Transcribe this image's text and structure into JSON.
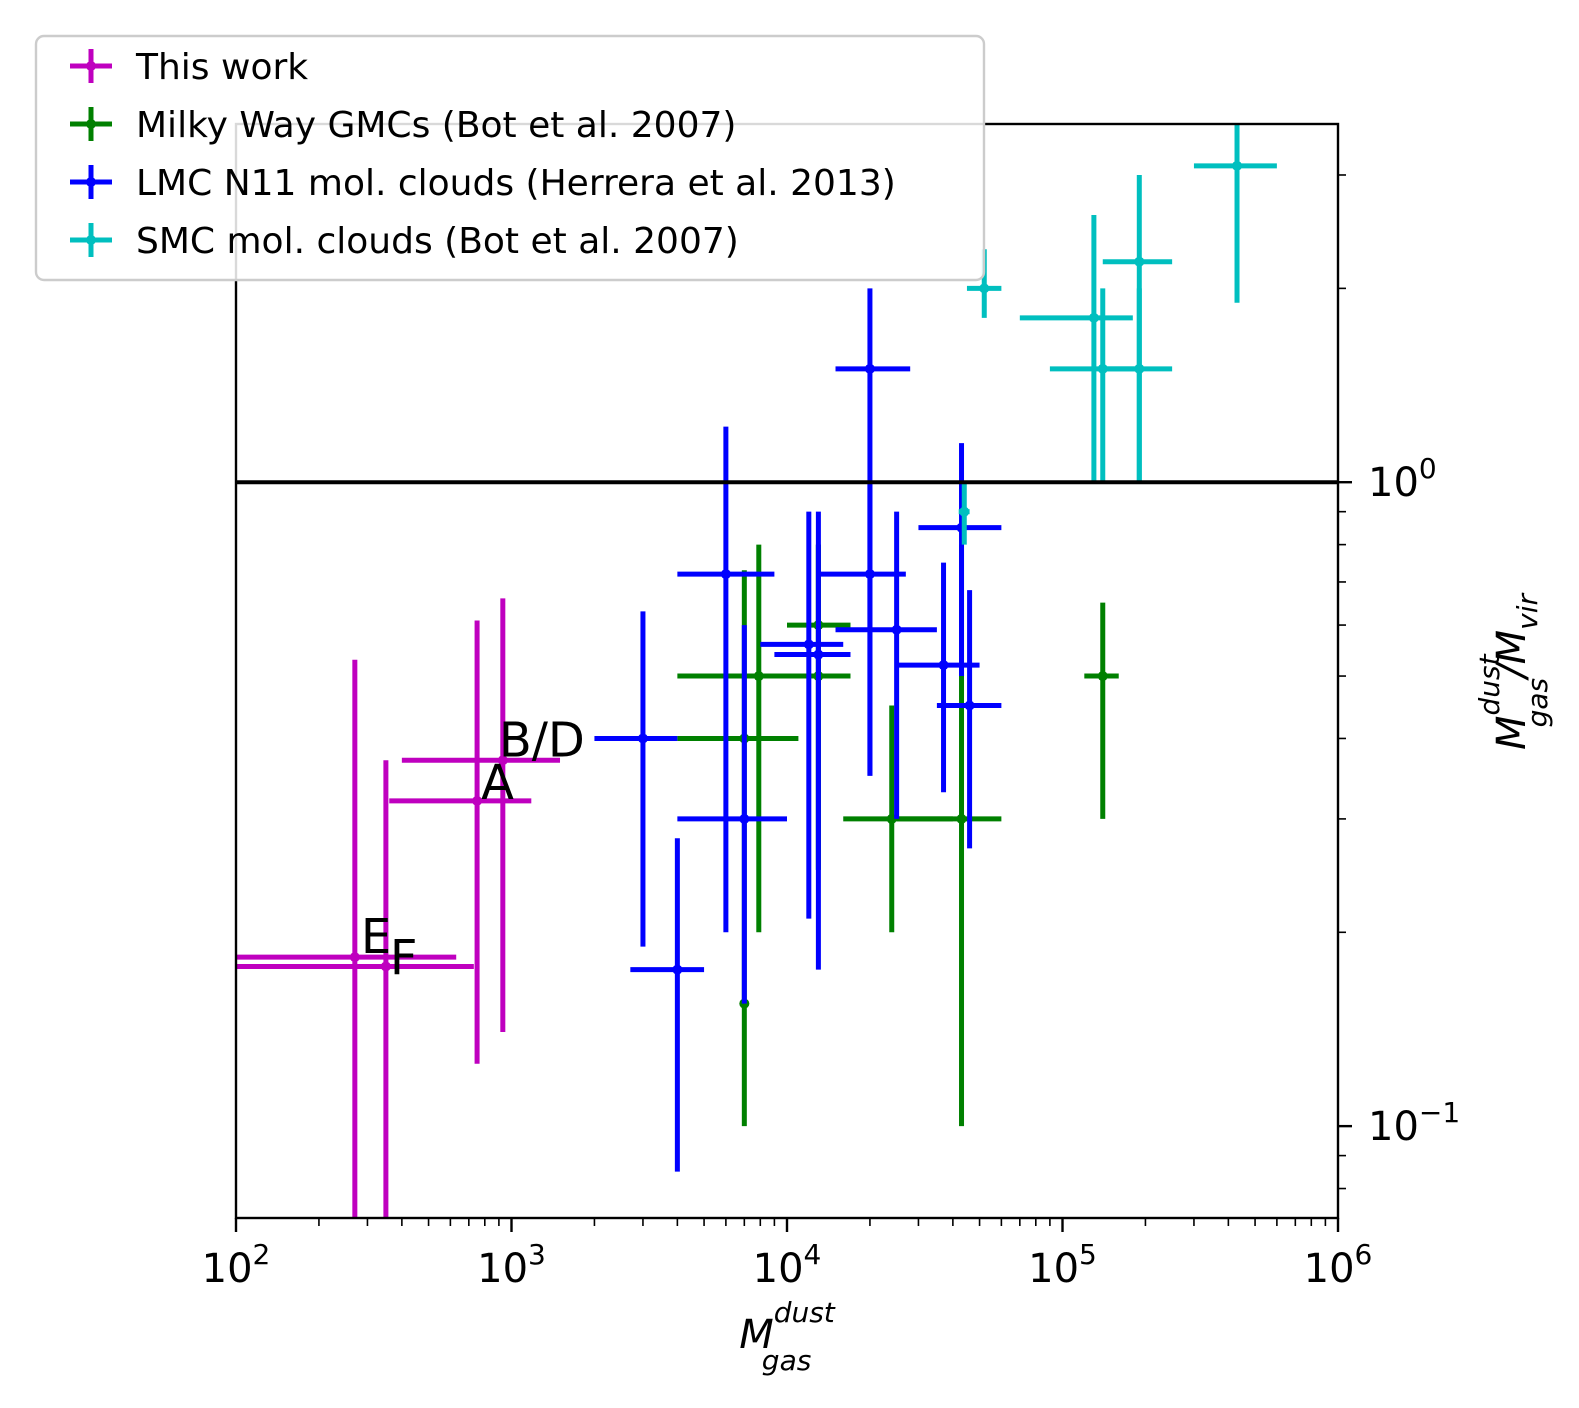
{
  "chart_data": {
    "type": "scatter",
    "x_scale": "log",
    "y_scale": "log",
    "xlim": [
      100,
      1000000
    ],
    "ylim": [
      0.072,
      3.6
    ],
    "xlabel": {
      "base": "M",
      "sup": "dust",
      "sub": "gas"
    },
    "ylabel": {
      "base": "M",
      "sup": "dust",
      "sub": "gas",
      "suffix": "/M",
      "suffix_sub": "vir"
    },
    "x_ticks": [
      {
        "value": 100,
        "base": "10",
        "exp": "2"
      },
      {
        "value": 1000,
        "base": "10",
        "exp": "3"
      },
      {
        "value": 10000,
        "base": "10",
        "exp": "4"
      },
      {
        "value": 100000,
        "base": "10",
        "exp": "5"
      },
      {
        "value": 1000000,
        "base": "10",
        "exp": "6"
      }
    ],
    "y_ticks": [
      {
        "value": 0.1,
        "base": "10",
        "exp": "−1"
      },
      {
        "value": 1,
        "base": "10",
        "exp": "0"
      }
    ],
    "reference_line": {
      "y": 1.0,
      "color": "#000000"
    },
    "legend_position": "top-left",
    "series": [
      {
        "name": "This work",
        "color": "#bf00bf",
        "points": [
          {
            "x": 750,
            "y": 0.32,
            "xerr": [
              360,
              1180
            ],
            "yerr": [
              0.125,
              0.61
            ],
            "label": "A"
          },
          {
            "x": 930,
            "y": 0.37,
            "xerr": [
              400,
              1500
            ],
            "yerr": [
              0.14,
              0.66
            ],
            "label": "B/D"
          },
          {
            "x": 270,
            "y": 0.183,
            "xerr": [
              100,
              630
            ],
            "yerr": [
              0.072,
              0.53
            ],
            "label": "E"
          },
          {
            "x": 350,
            "y": 0.177,
            "xerr": [
              100,
              730
            ],
            "yerr": [
              0.072,
              0.37
            ],
            "label": "F"
          }
        ]
      },
      {
        "name": "Milky Way GMCs (Bot et al. 2007)",
        "color": "#008000",
        "points": [
          {
            "x": 7000,
            "y": 0.4,
            "xerr": [
              4000,
              11000
            ],
            "yerr": [
              0.155,
              0.73
            ]
          },
          {
            "x": 7900,
            "y": 0.5,
            "xerr": [
              4000,
              16000
            ],
            "yerr": [
              0.2,
              0.8
            ]
          },
          {
            "x": 13000,
            "y": 0.6,
            "xerr": [
              10000,
              17000
            ],
            "yerr": [
              0.25,
              0.8
            ]
          },
          {
            "x": 13000,
            "y": 0.5,
            "xerr": [
              10000,
              17000
            ],
            "yerr": [
              0.25,
              0.8
            ]
          },
          {
            "x": 24000,
            "y": 0.3,
            "xerr": [
              16000,
              40000
            ],
            "yerr": [
              0.2,
              0.45
            ]
          },
          {
            "x": 43000,
            "y": 0.3,
            "xerr": [
              25000,
              60000
            ],
            "yerr": [
              0.1,
              0.8
            ]
          },
          {
            "x": 140000,
            "y": 0.5,
            "xerr": [
              120000,
              160000
            ],
            "yerr": [
              0.3,
              0.65
            ]
          },
          {
            "x": 7000,
            "y": 0.155,
            "xerr": [
              7000,
              7000
            ],
            "yerr": [
              0.1,
              0.155
            ]
          }
        ]
      },
      {
        "name": "LMC N11 mol. clouds (Herrera et al. 2013)",
        "color": "#0000ff",
        "points": [
          {
            "x": 3000,
            "y": 0.4,
            "xerr": [
              2000,
              4000
            ],
            "yerr": [
              0.19,
              0.63
            ]
          },
          {
            "x": 4000,
            "y": 0.175,
            "xerr": [
              2700,
              5000
            ],
            "yerr": [
              0.085,
              0.28
            ]
          },
          {
            "x": 6000,
            "y": 0.72,
            "xerr": [
              4000,
              9000
            ],
            "yerr": [
              0.2,
              1.22
            ]
          },
          {
            "x": 7000,
            "y": 0.3,
            "xerr": [
              4000,
              10000
            ],
            "yerr": [
              0.155,
              0.6
            ]
          },
          {
            "x": 12000,
            "y": 0.56,
            "xerr": [
              8000,
              16000
            ],
            "yerr": [
              0.21,
              0.9
            ]
          },
          {
            "x": 13000,
            "y": 0.54,
            "xerr": [
              9000,
              17000
            ],
            "yerr": [
              0.175,
              0.9
            ]
          },
          {
            "x": 20000,
            "y": 1.5,
            "xerr": [
              15000,
              28000
            ],
            "yerr": [
              0.35,
              2.0
            ]
          },
          {
            "x": 20000,
            "y": 0.72,
            "xerr": [
              13000,
              27000
            ],
            "yerr": [
              0.35,
              1.0
            ]
          },
          {
            "x": 25000,
            "y": 0.59,
            "xerr": [
              15000,
              35000
            ],
            "yerr": [
              0.3,
              0.9
            ]
          },
          {
            "x": 37000,
            "y": 0.52,
            "xerr": [
              25000,
              50000
            ],
            "yerr": [
              0.33,
              0.75
            ]
          },
          {
            "x": 43000,
            "y": 0.85,
            "xerr": [
              30000,
              60000
            ],
            "yerr": [
              0.5,
              1.15
            ]
          },
          {
            "x": 46000,
            "y": 0.45,
            "xerr": [
              35000,
              60000
            ],
            "yerr": [
              0.27,
              0.68
            ]
          }
        ]
      },
      {
        "name": "SMC mol. clouds (Bot et al. 2007)",
        "color": "#00bfbf",
        "points": [
          {
            "x": 52000,
            "y": 2.0,
            "xerr": [
              45000,
              60000
            ],
            "yerr": [
              1.8,
              2.3
            ]
          },
          {
            "x": 130000,
            "y": 1.8,
            "xerr": [
              70000,
              180000
            ],
            "yerr": [
              1.0,
              2.6
            ]
          },
          {
            "x": 140000,
            "y": 1.5,
            "xerr": [
              90000,
              190000
            ],
            "yerr": [
              1.0,
              2.0
            ]
          },
          {
            "x": 190000,
            "y": 2.2,
            "xerr": [
              140000,
              250000
            ],
            "yerr": [
              1.0,
              3.0
            ]
          },
          {
            "x": 190000,
            "y": 1.5,
            "xerr": [
              140000,
              250000
            ],
            "yerr": [
              1.0,
              2.0
            ]
          },
          {
            "x": 430000,
            "y": 3.1,
            "xerr": [
              300000,
              600000
            ],
            "yerr": [
              1.9,
              4.9
            ]
          },
          {
            "x": 44000,
            "y": 0.9,
            "xerr": [
              42000,
              46000
            ],
            "yerr": [
              0.8,
              1.0
            ]
          }
        ]
      }
    ]
  }
}
